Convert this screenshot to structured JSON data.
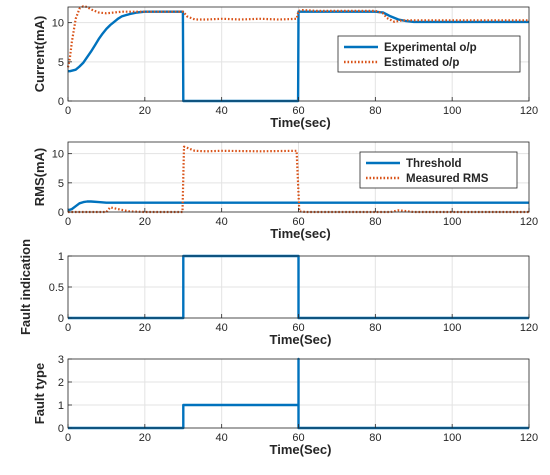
{
  "chart_data": [
    {
      "type": "line",
      "title": "",
      "xlabel": "Time(sec)",
      "ylabel": "Current(mA)",
      "xlim": [
        0,
        120
      ],
      "ylim": [
        0,
        12
      ],
      "xticks": [
        0,
        20,
        40,
        60,
        80,
        100,
        120
      ],
      "yticks": [
        0,
        5,
        10
      ],
      "grid": true,
      "legend": "top-right",
      "series": [
        {
          "name": "Experimental o/p",
          "color": "#0072BD",
          "style": "solid",
          "x": [
            0,
            0.5,
            2,
            3,
            4,
            5,
            6,
            7,
            8,
            9,
            10,
            11,
            12,
            13,
            14,
            16,
            18,
            20,
            22,
            25,
            29.9,
            30,
            59.9,
            60,
            62,
            70,
            80,
            82,
            84,
            86,
            88,
            90,
            95,
            100,
            110,
            120
          ],
          "y": [
            3.8,
            3.8,
            4,
            4.4,
            4.9,
            5.6,
            6.3,
            7.1,
            7.9,
            8.6,
            9.2,
            9.7,
            10.1,
            10.5,
            10.8,
            11.1,
            11.3,
            11.4,
            11.4,
            11.4,
            11.4,
            0,
            0,
            11.4,
            11.4,
            11.4,
            11.4,
            11.3,
            10.8,
            10.4,
            10.2,
            10.1,
            10.1,
            10.1,
            10.1,
            10.1
          ]
        },
        {
          "name": "Estimated o/p",
          "color": "#D95319",
          "style": "dotted",
          "x": [
            0,
            0.5,
            1,
            2,
            3,
            4,
            5,
            6,
            8,
            10,
            12,
            14,
            17,
            20,
            25,
            29,
            30,
            31,
            33,
            36,
            40,
            45,
            50,
            55,
            59.5,
            60,
            61,
            65,
            70,
            75,
            80,
            82,
            83,
            85,
            87,
            90,
            95,
            100,
            110,
            120
          ],
          "y": [
            4.3,
            5.5,
            7.5,
            10.5,
            11.8,
            12.1,
            12,
            11.7,
            11.3,
            11.2,
            11.3,
            11.4,
            11.4,
            11.4,
            11.4,
            11.4,
            11.4,
            10.8,
            10.4,
            10.4,
            10.5,
            10.4,
            10.5,
            10.4,
            10.5,
            11.5,
            11.6,
            11.5,
            11.5,
            11.5,
            11.5,
            11.2,
            10.6,
            10.1,
            10.3,
            10.3,
            10.3,
            10.3,
            10.3,
            10.3
          ]
        }
      ]
    },
    {
      "type": "line",
      "title": "",
      "xlabel": "Time(sec)",
      "ylabel": "RMS(mA)",
      "xlim": [
        0,
        120
      ],
      "ylim": [
        0,
        12
      ],
      "xticks": [
        0,
        20,
        40,
        60,
        80,
        100,
        120
      ],
      "yticks": [
        0,
        5,
        10
      ],
      "grid": true,
      "legend": "top-right",
      "series": [
        {
          "name": "Threshold",
          "color": "#0072BD",
          "style": "solid",
          "x": [
            0,
            1,
            2,
            3,
            4,
            5,
            6,
            8,
            10,
            15,
            20,
            30,
            40,
            50,
            60,
            62,
            70,
            80,
            90,
            100,
            110,
            120
          ],
          "y": [
            0.3,
            0.5,
            1,
            1.5,
            1.7,
            1.8,
            1.8,
            1.7,
            1.6,
            1.6,
            1.6,
            1.6,
            1.6,
            1.6,
            1.6,
            1.6,
            1.6,
            1.6,
            1.6,
            1.6,
            1.6,
            1.6
          ]
        },
        {
          "name": "Measured RMS",
          "color": "#D95319",
          "style": "dotted",
          "x": [
            0,
            5,
            10,
            11,
            13,
            16,
            20,
            29.8,
            30.2,
            31,
            33,
            36,
            40,
            50,
            59.5,
            60.2,
            62,
            70,
            84,
            86,
            90,
            100,
            120
          ],
          "y": [
            0,
            0,
            0,
            0.8,
            0.5,
            0.1,
            0,
            0,
            11.2,
            11,
            10.5,
            10.4,
            10.5,
            10.4,
            10.5,
            0.1,
            0,
            0,
            0,
            0.3,
            0,
            0,
            0
          ]
        }
      ]
    },
    {
      "type": "line",
      "title": "",
      "xlabel": "Time(Sec)",
      "ylabel": "Fault indication",
      "ylabel_lines": [
        "Fault",
        "indication"
      ],
      "xlim": [
        0,
        120
      ],
      "ylim": [
        0,
        1
      ],
      "xticks": [
        0,
        20,
        40,
        60,
        80,
        100,
        120
      ],
      "yticks": [
        0,
        0.5,
        1
      ],
      "grid": true,
      "legend": "none",
      "series": [
        {
          "color": "#0072BD",
          "style": "solid",
          "x": [
            0,
            30,
            30,
            60,
            60,
            120
          ],
          "y": [
            0,
            0,
            1,
            1,
            0,
            0
          ]
        }
      ]
    },
    {
      "type": "line",
      "title": "",
      "xlabel": "Time(Sec)",
      "ylabel": "Fault type",
      "xlim": [
        0,
        120
      ],
      "ylim": [
        0,
        3
      ],
      "xticks": [
        0,
        20,
        40,
        60,
        80,
        100,
        120
      ],
      "yticks": [
        0,
        1,
        2,
        3
      ],
      "grid": true,
      "legend": "none",
      "series": [
        {
          "color": "#0072BD",
          "style": "solid",
          "x": [
            0,
            30,
            30,
            60,
            60,
            60,
            120
          ],
          "y": [
            0,
            0,
            1,
            1,
            3,
            0,
            0
          ]
        }
      ]
    }
  ]
}
